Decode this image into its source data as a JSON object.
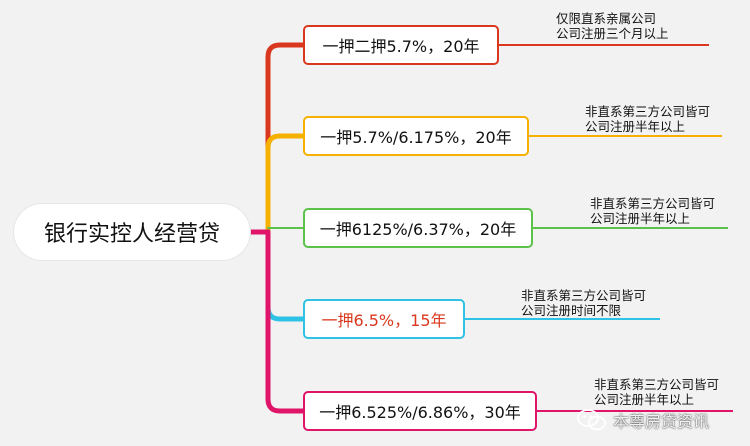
{
  "root": {
    "label": "银行实控人经营贷"
  },
  "colors": {
    "red": "#d9381e",
    "orange": "#f5b000",
    "green": "#5cc24a",
    "cyan": "#2ec3e6",
    "magenta": "#e0156a"
  },
  "branches": [
    {
      "label": "一押二押5.7%，20年",
      "color": "#d9381e",
      "text_color": "#111111",
      "note": [
        "仅限直系亲属公司",
        "公司注册三个月以上"
      ]
    },
    {
      "label": "一押5.7%/6.175%，20年",
      "color": "#f5b000",
      "text_color": "#111111",
      "note": [
        "非直系第三方公司皆可",
        "公司注册半年以上"
      ]
    },
    {
      "label": "一押6125%/6.37%，20年",
      "color": "#5cc24a",
      "text_color": "#111111",
      "note": [
        "非直系第三方公司皆可",
        "公司注册半年以上"
      ]
    },
    {
      "label": "一押6.5%，15年",
      "color": "#2ec3e6",
      "text_color": "#d9381e",
      "note": [
        "非直系第三方公司皆可",
        "公司注册时间不限"
      ]
    },
    {
      "label": "一押6.525%/6.86%，30年",
      "color": "#e0156a",
      "text_color": "#111111",
      "note": [
        "非直系第三方公司皆可",
        "公司注册半年以上"
      ]
    }
  ],
  "watermark": {
    "icon": "wechat-icon",
    "text": "本尊房贷资讯"
  }
}
